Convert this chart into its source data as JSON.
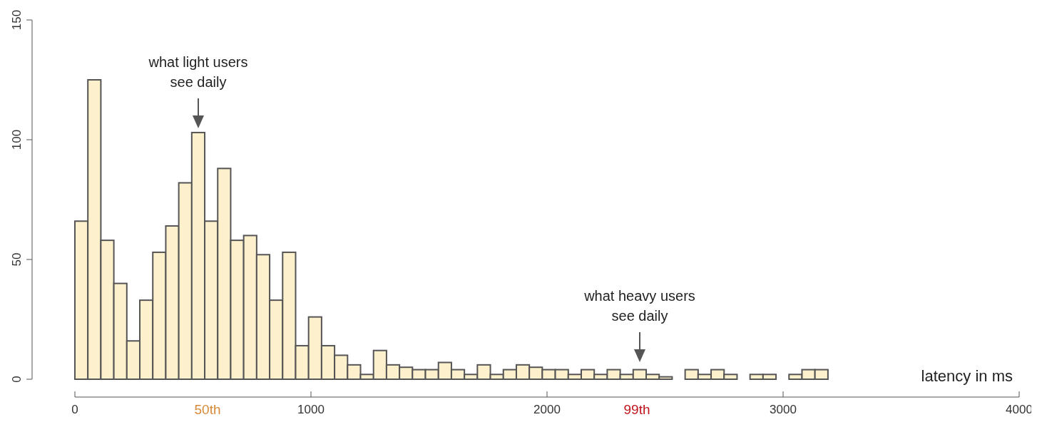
{
  "chart_data": {
    "type": "histogram",
    "xlabel": "latency in ms",
    "bins": [
      0,
      55,
      110,
      165,
      220,
      275,
      330,
      385,
      440,
      495,
      550,
      605,
      660,
      715,
      770,
      825,
      880,
      935,
      990,
      1045,
      1100,
      1155,
      1210,
      1265,
      1320,
      1375,
      1430,
      1485,
      1540,
      1595,
      1650,
      1705,
      1760,
      1815,
      1870,
      1925,
      1980,
      2035,
      2090,
      2145,
      2200,
      2255,
      2310,
      2365,
      2420,
      2475,
      2530,
      2585,
      2640,
      2695,
      2750,
      2805,
      2860,
      2915,
      2970,
      3025,
      3080,
      3135,
      3190
    ],
    "values": [
      66,
      125,
      58,
      40,
      16,
      33,
      53,
      64,
      82,
      103,
      66,
      88,
      58,
      60,
      52,
      33,
      53,
      14,
      26,
      14,
      10,
      6,
      2,
      12,
      6,
      5,
      4,
      4,
      7,
      4,
      2,
      6,
      2,
      4,
      6,
      5,
      4,
      4,
      2,
      4,
      2,
      4,
      2,
      4,
      2,
      1,
      0,
      4,
      2,
      4,
      2,
      0,
      2,
      2,
      0,
      2,
      4,
      4
    ],
    "color": "#fdf0cc",
    "xlim": [
      0,
      4000
    ],
    "xticks": [
      0,
      1000,
      2000,
      3000,
      4000
    ],
    "ylim": [
      0,
      150
    ],
    "yticks": [
      0,
      50,
      100,
      150
    ],
    "grid": false,
    "annotations": [
      "what light users see daily",
      "what heavy users see daily",
      "50th",
      "99th"
    ]
  }
}
